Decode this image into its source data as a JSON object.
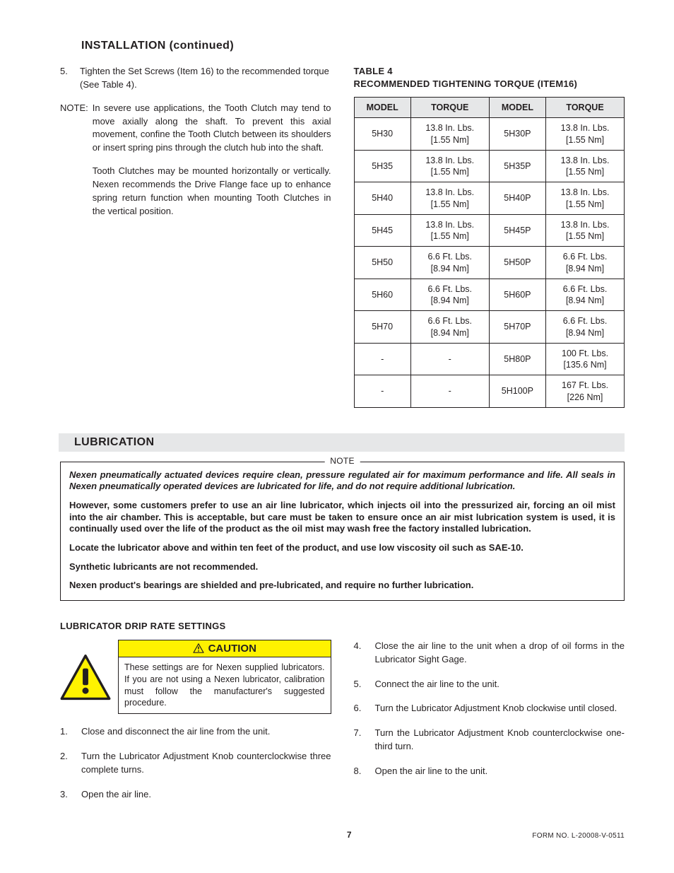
{
  "page": {
    "number": "7",
    "form_no": "FORM NO. L-20008-V-0511"
  },
  "installation": {
    "heading": "INSTALLATION (continued)",
    "steps": [
      {
        "num": "5.",
        "text": "Tighten the Set Screws (Item 16) to the recommended torque (See Table 4)."
      }
    ],
    "note_label": "NOTE:",
    "note_paragraphs": [
      "In severe use applications, the Tooth Clutch may tend to move axially along the shaft. To prevent this axial movement, confine the Tooth Clutch between its shoulders or insert spring pins through the clutch hub into the shaft.",
      "Tooth Clutches may be mounted horizontally or vertically. Nexen recommends the Drive Flange face up to enhance spring return function when mounting Tooth Clutches in the vertical position."
    ]
  },
  "table4": {
    "caption_line1": "TABLE  4",
    "caption_line2": "RECOMMENDED TIGHTENING TORQUE (ITEM16)",
    "columns": [
      "MODEL",
      "TORQUE",
      "MODEL",
      "TORQUE"
    ],
    "rows": [
      [
        "5H30",
        "13.8 In. Lbs.\n[1.55 Nm]",
        "5H30P",
        "13.8 In. Lbs.\n[1.55 Nm]"
      ],
      [
        "5H35",
        "13.8 In. Lbs.\n[1.55 Nm]",
        "5H35P",
        "13.8 In. Lbs.\n[1.55 Nm]"
      ],
      [
        "5H40",
        "13.8 In. Lbs.\n[1.55 Nm]",
        "5H40P",
        "13.8 In. Lbs.\n[1.55 Nm]"
      ],
      [
        "5H45",
        "13.8 In. Lbs.\n[1.55 Nm]",
        "5H45P",
        "13.8 In. Lbs.\n[1.55 Nm]"
      ],
      [
        "5H50",
        "6.6 Ft. Lbs.\n[8.94 Nm]",
        "5H50P",
        "6.6 Ft. Lbs.\n[8.94 Nm]"
      ],
      [
        "5H60",
        "6.6 Ft. Lbs.\n[8.94 Nm]",
        "5H60P",
        "6.6 Ft. Lbs.\n[8.94 Nm]"
      ],
      [
        "5H70",
        "6.6 Ft. Lbs.\n[8.94 Nm]",
        "5H70P",
        "6.6 Ft. Lbs.\n[8.94 Nm]"
      ],
      [
        "-",
        "-",
        "5H80P",
        "100 Ft. Lbs.\n[135.6 Nm]"
      ],
      [
        "-",
        "-",
        "5H100P",
        "167 Ft. Lbs.\n[226 Nm]"
      ]
    ],
    "header_bg": "#e6e7e8",
    "border_color": "#231f20",
    "fontsize": 12.5
  },
  "lubrication": {
    "heading": "LUBRICATION",
    "note_title": "NOTE",
    "paragraphs": [
      "Nexen pneumatically actuated devices require clean, pressure regulated air for maximum performance and life.  All seals in Nexen pneumatically operated devices are lubricated for life, and do not require additional lubrication.",
      "However, some customers prefer to use an air line lubricator, which injects oil into the pressurized air, forcing an oil mist into the air chamber. This is acceptable, but care must be taken to ensure once an air mist lubrication system is used, it is continually used over the life of the product as the oil mist may wash free the factory installed lubrication.",
      "Locate the lubricator above and within ten feet of the product, and use low viscosity oil such as SAE-10.",
      "Synthetic lubricants are not recommended.",
      "Nexen product's bearings are shielded and pre-lubricated, and require no further lubrication."
    ]
  },
  "drip_rate": {
    "heading": "LUBRICATOR DRIP RATE SETTINGS",
    "caution_label": "CAUTION",
    "caution_text": "These settings are for Nexen supplied lubricators.  If you are not using a Nexen lubricator, calibration must follow the manufacturer's suggested procedure.",
    "steps_left": [
      {
        "num": "1.",
        "text": "Close and disconnect the air line from the unit."
      },
      {
        "num": "2.",
        "text": "Turn the Lubricator Adjustment Knob counterclockwise three complete turns."
      },
      {
        "num": "3.",
        "text": "Open the air line."
      }
    ],
    "steps_right": [
      {
        "num": "4.",
        "text": "Close the air line to the unit when a drop of oil forms in the Lubricator Sight Gage."
      },
      {
        "num": "5.",
        "text": "Connect the air line to the unit."
      },
      {
        "num": "6.",
        "text": "Turn the Lubricator Adjustment Knob clockwise until closed."
      },
      {
        "num": "7.",
        "text": "Turn the Lubricator Adjustment Knob counterclockwise one-third turn."
      },
      {
        "num": "8.",
        "text": "Open the air line to the unit."
      }
    ]
  },
  "colors": {
    "text": "#231f20",
    "section_bar_bg": "#e6e7e8",
    "caution_bg": "#fff200",
    "page_bg": "#ffffff"
  },
  "typography": {
    "base_family": "Arial, Helvetica, sans-serif",
    "heading_pt": 16,
    "body_pt": 13,
    "table_pt": 12.5,
    "footer_pt": 10
  }
}
